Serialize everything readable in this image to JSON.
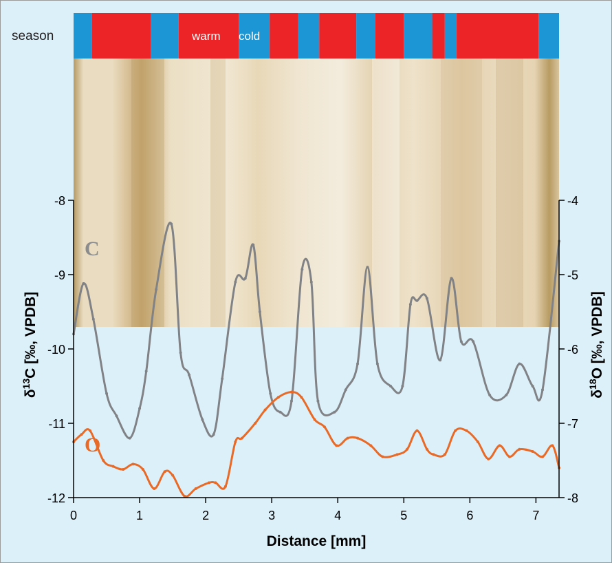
{
  "chart_data": {
    "type": "line",
    "title": "",
    "xlabel": "Distance [mm]",
    "ylabel_left": {
      "prefix": "δ",
      "sup": "13",
      "rest": "C [‰, VPDB]"
    },
    "ylabel_right": {
      "prefix": "δ",
      "sup": "18",
      "rest": "O [‰, VPDB]"
    },
    "xlim": [
      0,
      7.35
    ],
    "x_ticks": [
      0,
      1,
      2,
      3,
      4,
      5,
      6,
      7
    ],
    "y_left_lim": [
      -12,
      -8
    ],
    "y_left_ticks": [
      -12,
      -11,
      -10,
      -9,
      -8
    ],
    "y_right_lim": [
      -8,
      -4
    ],
    "y_right_ticks": [
      -8,
      -7,
      -6,
      -5,
      -4
    ],
    "colors": {
      "carbon": "#808285",
      "oxygen": "#e86a26",
      "warm": "#ec2427",
      "cold": "#1c96d4",
      "background": "#dcf0fa"
    },
    "season_band": {
      "label": "season",
      "legend_warm": "warm",
      "legend_cold": "cold",
      "segments": [
        {
          "start": 0.0,
          "end": 0.28,
          "season": "cold"
        },
        {
          "start": 0.28,
          "end": 1.17,
          "season": "warm"
        },
        {
          "start": 1.17,
          "end": 1.59,
          "season": "cold"
        },
        {
          "start": 1.59,
          "end": 2.5,
          "season": "warm"
        },
        {
          "start": 2.5,
          "end": 2.97,
          "season": "cold"
        },
        {
          "start": 2.97,
          "end": 3.4,
          "season": "warm"
        },
        {
          "start": 3.4,
          "end": 3.72,
          "season": "cold"
        },
        {
          "start": 3.72,
          "end": 4.28,
          "season": "warm"
        },
        {
          "start": 4.28,
          "end": 4.57,
          "season": "cold"
        },
        {
          "start": 4.57,
          "end": 5.0,
          "season": "warm"
        },
        {
          "start": 5.0,
          "end": 5.43,
          "season": "cold"
        },
        {
          "start": 5.43,
          "end": 5.62,
          "season": "warm"
        },
        {
          "start": 5.62,
          "end": 5.8,
          "season": "cold"
        },
        {
          "start": 5.8,
          "end": 7.04,
          "season": "warm"
        },
        {
          "start": 7.04,
          "end": 7.35,
          "season": "cold"
        }
      ]
    },
    "series": [
      {
        "name": "C",
        "axis": "left",
        "x": [
          0.0,
          0.15,
          0.3,
          0.5,
          0.65,
          0.85,
          1.0,
          1.1,
          1.25,
          1.48,
          1.62,
          1.75,
          1.95,
          2.12,
          2.25,
          2.45,
          2.6,
          2.72,
          2.82,
          2.98,
          3.13,
          3.3,
          3.46,
          3.6,
          3.7,
          3.95,
          4.12,
          4.3,
          4.45,
          4.6,
          4.8,
          4.98,
          5.1,
          5.2,
          5.35,
          5.55,
          5.72,
          5.87,
          6.05,
          6.3,
          6.55,
          6.75,
          6.95,
          7.1,
          7.35
        ],
        "values": [
          -9.8,
          -9.12,
          -9.6,
          -10.6,
          -10.9,
          -11.2,
          -10.8,
          -10.3,
          -9.2,
          -8.32,
          -10.05,
          -10.35,
          -10.95,
          -11.15,
          -10.4,
          -9.1,
          -9.05,
          -8.6,
          -9.5,
          -10.6,
          -10.85,
          -10.7,
          -8.93,
          -9.1,
          -10.7,
          -10.85,
          -10.55,
          -10.2,
          -8.9,
          -10.2,
          -10.5,
          -10.5,
          -9.4,
          -9.35,
          -9.32,
          -10.15,
          -9.05,
          -9.9,
          -9.9,
          -10.62,
          -10.62,
          -10.2,
          -10.5,
          -10.55,
          -8.55
        ]
      },
      {
        "name": "O",
        "axis": "right",
        "x": [
          0.0,
          0.12,
          0.25,
          0.45,
          0.6,
          0.75,
          0.9,
          1.05,
          1.22,
          1.38,
          1.5,
          1.68,
          1.85,
          2.05,
          2.15,
          2.3,
          2.45,
          2.55,
          2.75,
          2.9,
          3.1,
          3.3,
          3.45,
          3.65,
          3.8,
          3.98,
          4.15,
          4.3,
          4.5,
          4.68,
          4.9,
          5.05,
          5.2,
          5.35,
          5.45,
          5.62,
          5.78,
          5.95,
          6.12,
          6.28,
          6.45,
          6.6,
          6.75,
          6.95,
          7.1,
          7.25,
          7.35
        ],
        "values": [
          -7.25,
          -7.15,
          -7.1,
          -7.5,
          -7.58,
          -7.62,
          -7.55,
          -7.62,
          -7.88,
          -7.65,
          -7.7,
          -7.98,
          -7.88,
          -7.8,
          -7.8,
          -7.85,
          -7.25,
          -7.2,
          -7.0,
          -6.82,
          -6.65,
          -6.58,
          -6.65,
          -6.95,
          -7.05,
          -7.3,
          -7.2,
          -7.2,
          -7.3,
          -7.45,
          -7.42,
          -7.35,
          -7.1,
          -7.35,
          -7.42,
          -7.42,
          -7.1,
          -7.1,
          -7.25,
          -7.48,
          -7.3,
          -7.45,
          -7.35,
          -7.38,
          -7.45,
          -7.3,
          -7.6
        ]
      }
    ]
  }
}
